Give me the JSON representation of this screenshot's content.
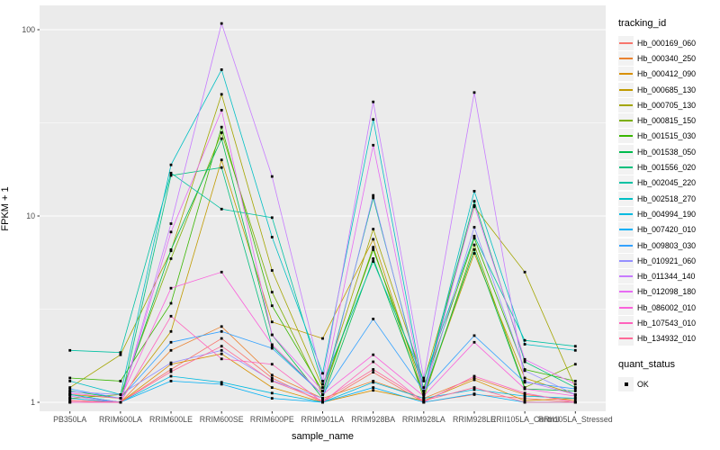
{
  "style": {
    "panel_bg": "#EBEBEB",
    "grid_color": "#FFFFFF",
    "axis_text_color": "#4D4D4D",
    "text_color": "#000000",
    "background": "#FFFFFF",
    "legend_key_bg": "#F2F2F2",
    "point_color": "#000000"
  },
  "chart_data": {
    "type": "line",
    "title": "",
    "xlabel": "sample_name",
    "ylabel": "FPKM + 1",
    "y_scale": "log10",
    "ylim": [
      1,
      135
    ],
    "y_ticks": [
      1,
      10,
      100
    ],
    "y_minor_ticks": [
      3.1623,
      31.623
    ],
    "grid": true,
    "legend_position": "right",
    "point_shape": "filled-square",
    "categories": [
      "PB350LA",
      "RRIM600LA",
      "RRIM600LE",
      "RRIM600SE",
      "RRIM600PE",
      "RRIM901LA",
      "RRIM928BA",
      "RRIM928LA",
      "RRIM928LE",
      "RRII105LA_Control",
      "RRII105LA_Stressed"
    ],
    "legend_title": "tracking_id",
    "quant_legend": {
      "title": "quant_status",
      "items": [
        "OK"
      ]
    },
    "series": [
      {
        "name": "Hb_000169_060",
        "color": "#F8766D",
        "values": [
          1.0,
          1.0,
          1.5,
          2.2,
          1.35,
          1.0,
          1.45,
          1.0,
          1.1,
          1.05,
          1.0
        ]
      },
      {
        "name": "Hb_000340_250",
        "color": "#EA8331",
        "values": [
          1.05,
          1.0,
          1.9,
          2.55,
          1.4,
          1.05,
          1.3,
          1.05,
          1.35,
          1.1,
          1.02
        ]
      },
      {
        "name": "Hb_000412_090",
        "color": "#D89000",
        "values": [
          1.02,
          1.0,
          1.6,
          1.82,
          1.2,
          1.0,
          1.16,
          1.02,
          1.32,
          1.02,
          1.05
        ]
      },
      {
        "name": "Hb_000685_130",
        "color": "#C09B00",
        "values": [
          1.1,
          1.05,
          2.4,
          20.0,
          2.7,
          2.2,
          7.5,
          1.1,
          6.3,
          1.35,
          1.1
        ]
      },
      {
        "name": "Hb_000705_130",
        "color": "#A3A500",
        "values": [
          1.2,
          1.8,
          6.5,
          45.0,
          5.1,
          1.2,
          8.5,
          1.3,
          11.2,
          5.0,
          1.2
        ]
      },
      {
        "name": "Hb_000815_150",
        "color": "#7CAE00",
        "values": [
          1.05,
          1.1,
          5.9,
          28.0,
          3.9,
          1.1,
          6.8,
          1.05,
          7.0,
          1.2,
          1.6
        ]
      },
      {
        "name": "Hb_001515_030",
        "color": "#39B600",
        "values": [
          1.35,
          1.3,
          3.4,
          30.0,
          3.3,
          1.15,
          6.6,
          1.2,
          7.6,
          1.5,
          1.3
        ]
      },
      {
        "name": "Hb_001538_050",
        "color": "#00BB4E",
        "values": [
          1.15,
          1.05,
          6.6,
          26.0,
          2.3,
          1.05,
          5.9,
          1.1,
          6.6,
          1.18,
          1.15
        ]
      },
      {
        "name": "Hb_001556_020",
        "color": "#00BF7D",
        "values": [
          1.1,
          1.0,
          16.5,
          18.2,
          2.0,
          1.1,
          12.5,
          1.15,
          12.0,
          1.65,
          1.2
        ]
      },
      {
        "name": "Hb_002045_220",
        "color": "#00C1A3",
        "values": [
          1.9,
          1.85,
          17.0,
          10.9,
          9.8,
          1.25,
          5.7,
          1.31,
          7.8,
          2.15,
          2.0
        ]
      },
      {
        "name": "Hb_002518_270",
        "color": "#00BFC4",
        "values": [
          1.3,
          1.1,
          18.8,
          61.0,
          7.7,
          1.43,
          33.0,
          1.15,
          13.6,
          2.05,
          1.9
        ]
      },
      {
        "name": "Hb_004994_190",
        "color": "#00BAE0",
        "values": [
          1.1,
          1.0,
          1.38,
          1.28,
          1.12,
          1.0,
          1.28,
          1.05,
          1.17,
          1.08,
          1.05
        ]
      },
      {
        "name": "Hb_007420_010",
        "color": "#00B0F6",
        "values": [
          1.05,
          1.0,
          1.3,
          1.25,
          1.05,
          1.0,
          1.2,
          1.0,
          1.11,
          1.0,
          1.0
        ]
      },
      {
        "name": "Hb_009803_030",
        "color": "#35A2FF",
        "values": [
          1.18,
          1.05,
          2.1,
          2.4,
          1.95,
          1.1,
          2.8,
          1.15,
          2.28,
          1.28,
          1.18
        ]
      },
      {
        "name": "Hb_010921_060",
        "color": "#9590FF",
        "values": [
          1.14,
          1.1,
          1.63,
          1.9,
          1.31,
          1.05,
          12.9,
          1.1,
          8.7,
          1.48,
          1.1
        ]
      },
      {
        "name": "Hb_011344_140",
        "color": "#C77CFF",
        "values": [
          1.0,
          1.0,
          9.1,
          108.0,
          16.3,
          1.3,
          41.0,
          1.35,
          46.0,
          1.3,
          1.1
        ]
      },
      {
        "name": "Hb_012098_180",
        "color": "#E76BF3",
        "values": [
          1.08,
          1.0,
          8.2,
          37.0,
          2.3,
          1.15,
          24.0,
          1.12,
          11.4,
          1.7,
          1.25
        ]
      },
      {
        "name": "Hb_086002_010",
        "color": "#FA62DB",
        "values": [
          1.12,
          1.05,
          4.1,
          5.0,
          2.04,
          1.1,
          1.8,
          1.08,
          2.1,
          1.18,
          1.08
        ]
      },
      {
        "name": "Hb_107543_010",
        "color": "#FF62BC",
        "values": [
          1.0,
          1.0,
          2.9,
          1.71,
          1.6,
          1.0,
          1.65,
          1.0,
          1.38,
          1.12,
          1.0
        ]
      },
      {
        "name": "Hb_134932_010",
        "color": "#FF6A98",
        "values": [
          1.02,
          1.0,
          1.46,
          2.0,
          1.3,
          1.02,
          1.5,
          1.02,
          1.2,
          1.0,
          1.0
        ]
      }
    ]
  }
}
